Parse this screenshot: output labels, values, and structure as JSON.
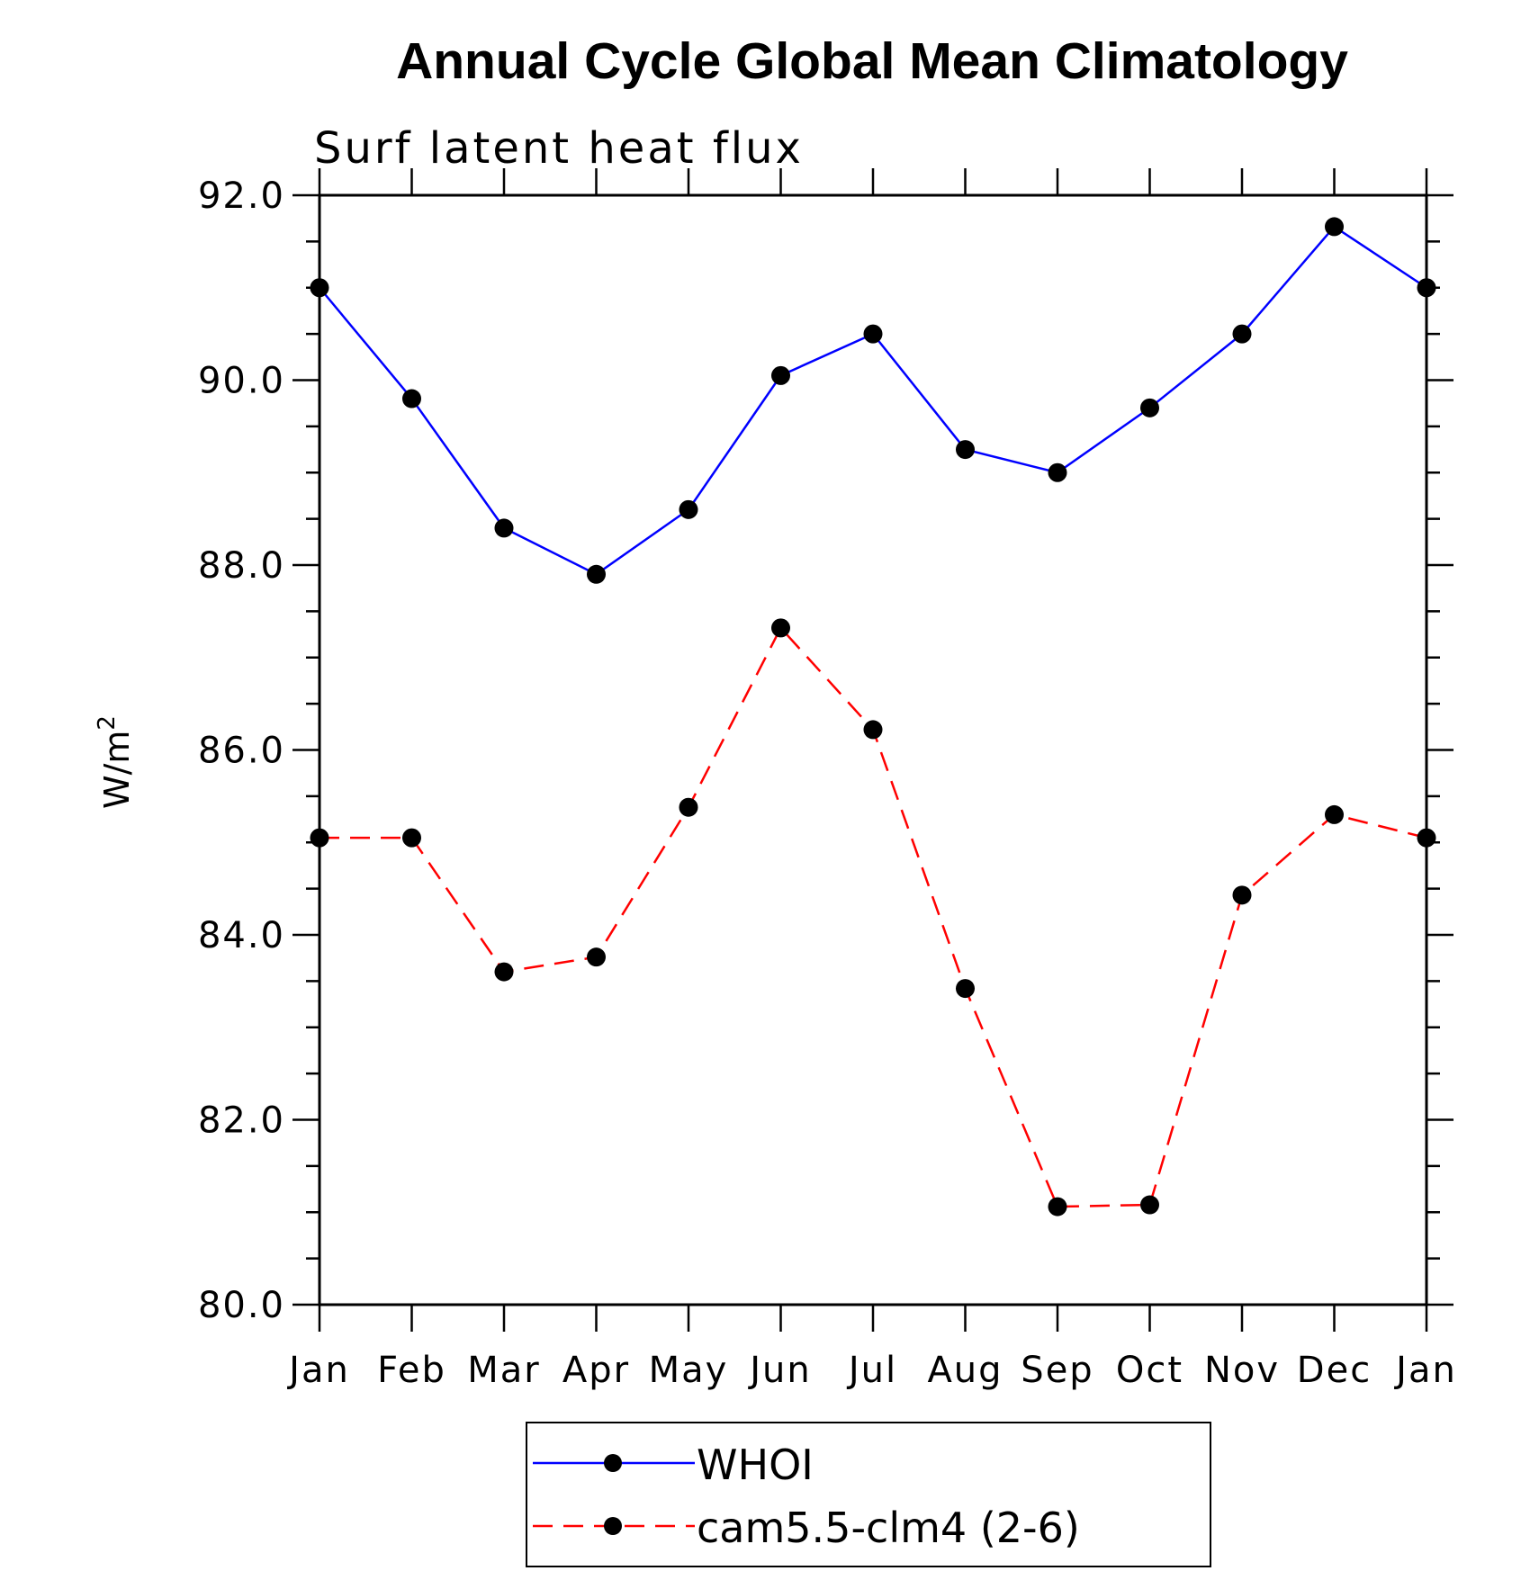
{
  "chart_data": {
    "type": "line",
    "title": "Annual Cycle Global Mean Climatology",
    "subtitle": "Surf latent heat flux",
    "ylabel_base": "W/m",
    "ylabel_sup": "2",
    "categories": [
      "Jan",
      "Feb",
      "Mar",
      "Apr",
      "May",
      "Jun",
      "Jul",
      "Aug",
      "Sep",
      "Oct",
      "Nov",
      "Dec",
      "Jan"
    ],
    "ylim": [
      80,
      92
    ],
    "yticks": [
      {
        "value": 80,
        "label": "80.0"
      },
      {
        "value": 82,
        "label": "82.0"
      },
      {
        "value": 84,
        "label": "84.0"
      },
      {
        "value": 86,
        "label": "86.0"
      },
      {
        "value": 88,
        "label": "88.0"
      },
      {
        "value": 90,
        "label": "90.0"
      },
      {
        "value": 92,
        "label": "92.0"
      }
    ],
    "series": [
      {
        "name": "WHOI",
        "color": "#0000ff",
        "dashed": false,
        "values": [
          91.0,
          89.8,
          88.4,
          87.9,
          88.6,
          90.05,
          90.5,
          89.25,
          89.0,
          89.7,
          90.5,
          91.66,
          91.0
        ]
      },
      {
        "name": "cam5.5-clm4 (2-6)",
        "color": "#ff0000",
        "dashed": true,
        "values": [
          85.05,
          85.05,
          83.6,
          83.76,
          85.38,
          87.32,
          86.22,
          83.42,
          81.06,
          81.08,
          84.43,
          85.3,
          85.05
        ]
      }
    ],
    "legend_position": "bottom-center",
    "grid": false
  }
}
